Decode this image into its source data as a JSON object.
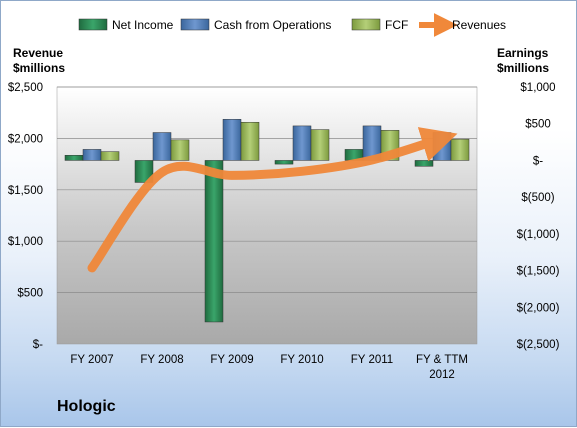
{
  "company": "Hologic",
  "chart_data": {
    "type": "bar",
    "categories": [
      "FY 2007",
      "FY 2008",
      "FY 2009",
      "FY 2010",
      "FY 2011",
      "FY & TTM 2012"
    ],
    "left_axis": {
      "label_line1": "Revenue",
      "label_line2": "$millions",
      "ylim": [
        0,
        2500
      ],
      "ticks": [
        0,
        500,
        1000,
        1500,
        2000,
        2500
      ],
      "tick_labels": [
        "$-",
        "$500",
        "$1,000",
        "$1,500",
        "$2,000",
        "$2,500"
      ]
    },
    "right_axis": {
      "label_line1": "Earnings",
      "label_line2": "$millions",
      "ylim": [
        -2500,
        1000
      ],
      "ticks": [
        -2500,
        -2000,
        -1500,
        -1000,
        -500,
        0,
        500,
        1000
      ],
      "tick_labels": [
        "$(2,500)",
        "$(2,000)",
        "$(1,500)",
        "$(1,000)",
        "$(500)",
        "$-",
        "$500",
        "$1,000"
      ]
    },
    "series": [
      {
        "name": "Net Income",
        "axis": "right",
        "kind": "bar",
        "color": "#2e8b57",
        "values": [
          70,
          -300,
          -2200,
          -50,
          150,
          -80
        ]
      },
      {
        "name": "Cash from Operations",
        "axis": "right",
        "kind": "bar",
        "color": "#4f81bd",
        "values": [
          150,
          380,
          560,
          470,
          470,
          380
        ]
      },
      {
        "name": "FCF",
        "axis": "right",
        "kind": "bar",
        "color": "#9bbb59",
        "values": [
          120,
          280,
          520,
          420,
          410,
          290
        ]
      },
      {
        "name": "Revenues",
        "axis": "left",
        "kind": "line",
        "color": "#f0883a",
        "values": [
          740,
          1670,
          1640,
          1680,
          1790,
          2000
        ]
      }
    ],
    "grid": true,
    "legend_position": "top"
  }
}
